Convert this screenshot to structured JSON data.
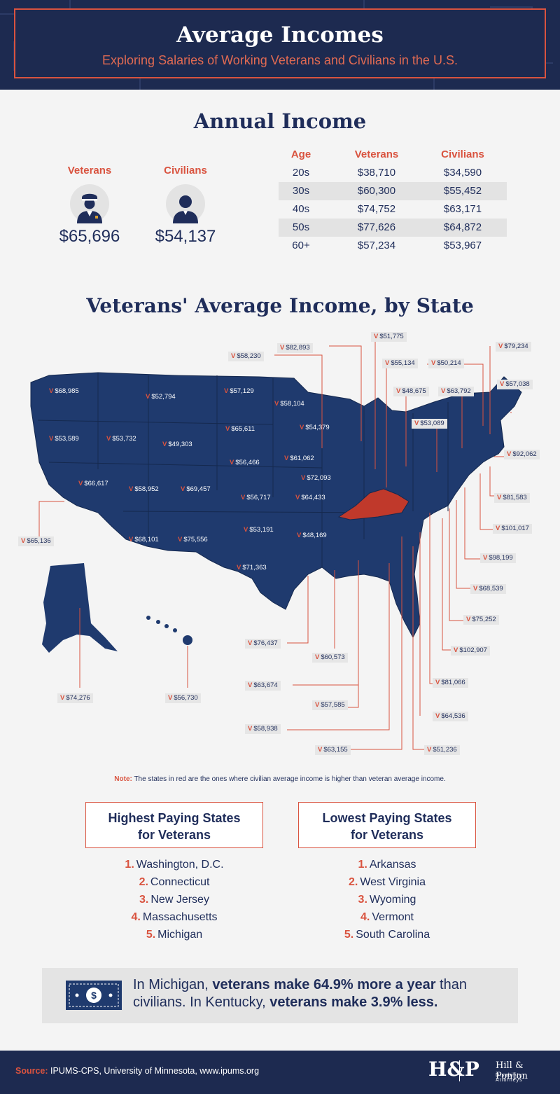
{
  "header": {
    "title": "Average Incomes",
    "subtitle": "Exploring Salaries of Working Veterans and Civilians in the U.S."
  },
  "annual": {
    "title": "Annual Income",
    "veterans_label": "Veterans",
    "veterans_value": "$65,696",
    "civilians_label": "Civilians",
    "civilians_value": "$54,137",
    "veteran_icon": "soldier-icon",
    "civilian_icon": "person-icon"
  },
  "age_table": {
    "headers": [
      "Age",
      "Veterans",
      "Civilians"
    ],
    "rows": [
      [
        "20s",
        "$38,710",
        "$34,590"
      ],
      [
        "30s",
        "$60,300",
        "$55,452"
      ],
      [
        "40s",
        "$74,752",
        "$63,171"
      ],
      [
        "50s",
        "$77,626",
        "$64,872"
      ],
      [
        "60+",
        "$57,234",
        "$53,967"
      ]
    ]
  },
  "map": {
    "title": "Veterans' Average Income, by State",
    "prefix": "V",
    "map_color": "#1f3a6e",
    "highlight_color": "#c0392b",
    "labels": [
      "$68,985",
      "$52,794",
      "$57,129",
      "$58,104",
      "$53,589",
      "$53,732",
      "$49,303",
      "$65,611",
      "$54,379",
      "$56,466",
      "$61,062",
      "$66,617",
      "$58,952",
      "$69,457",
      "$56,717",
      "$64,433",
      "$72,093",
      "$68,101",
      "$75,556",
      "$53,191",
      "$48,169",
      "$71,363",
      "$65,136",
      "$74,276",
      "$56,730",
      "$58,230",
      "$82,893",
      "$51,775",
      "$55,134",
      "$50,214",
      "$79,234",
      "$48,675",
      "$63,792",
      "$57,038",
      "$53,089",
      "$92,062",
      "$81,583",
      "$101,017",
      "$98,199",
      "$68,539",
      "$75,252",
      "$102,907",
      "$76,437",
      "$60,573",
      "$81,066",
      "$63,674",
      "$57,585",
      "$64,536",
      "$58,938",
      "$63,155",
      "$51,236"
    ]
  },
  "note": {
    "label": "Note:",
    "text": "The states in red are the ones where civilian average income is higher than veteran average income."
  },
  "highest": {
    "title_line1": "Highest Paying States",
    "title_line2": "for Veterans",
    "items": [
      {
        "num": "1.",
        "name": "Washington, D.C."
      },
      {
        "num": "2.",
        "name": "Connecticut"
      },
      {
        "num": "3.",
        "name": "New Jersey"
      },
      {
        "num": "4.",
        "name": "Massachusetts"
      },
      {
        "num": "5.",
        "name": "Michigan"
      }
    ]
  },
  "lowest": {
    "title_line1": "Lowest Paying States",
    "title_line2": "for Veterans",
    "items": [
      {
        "num": "1.",
        "name": "Arkansas"
      },
      {
        "num": "2.",
        "name": "West Virginia"
      },
      {
        "num": "3.",
        "name": "Wyoming"
      },
      {
        "num": "4.",
        "name": "Vermont"
      },
      {
        "num": "5.",
        "name": "South Carolina"
      }
    ]
  },
  "callout": {
    "icon": "dollar-bill-icon",
    "t1": "In Michigan, ",
    "b1": "veterans make 64.9% more a year",
    "t2": " than civilians. In Kentucky, ",
    "b2": "veterans make 3.9% less."
  },
  "footer": {
    "source_label": "Source:",
    "source_text": " IPUMS-CPS, University of Minnesota, www.ipums.org",
    "logo_mark": "H&P",
    "logo_name": "Hill & Ponton",
    "logo_sub": "Disability Attorneys"
  }
}
